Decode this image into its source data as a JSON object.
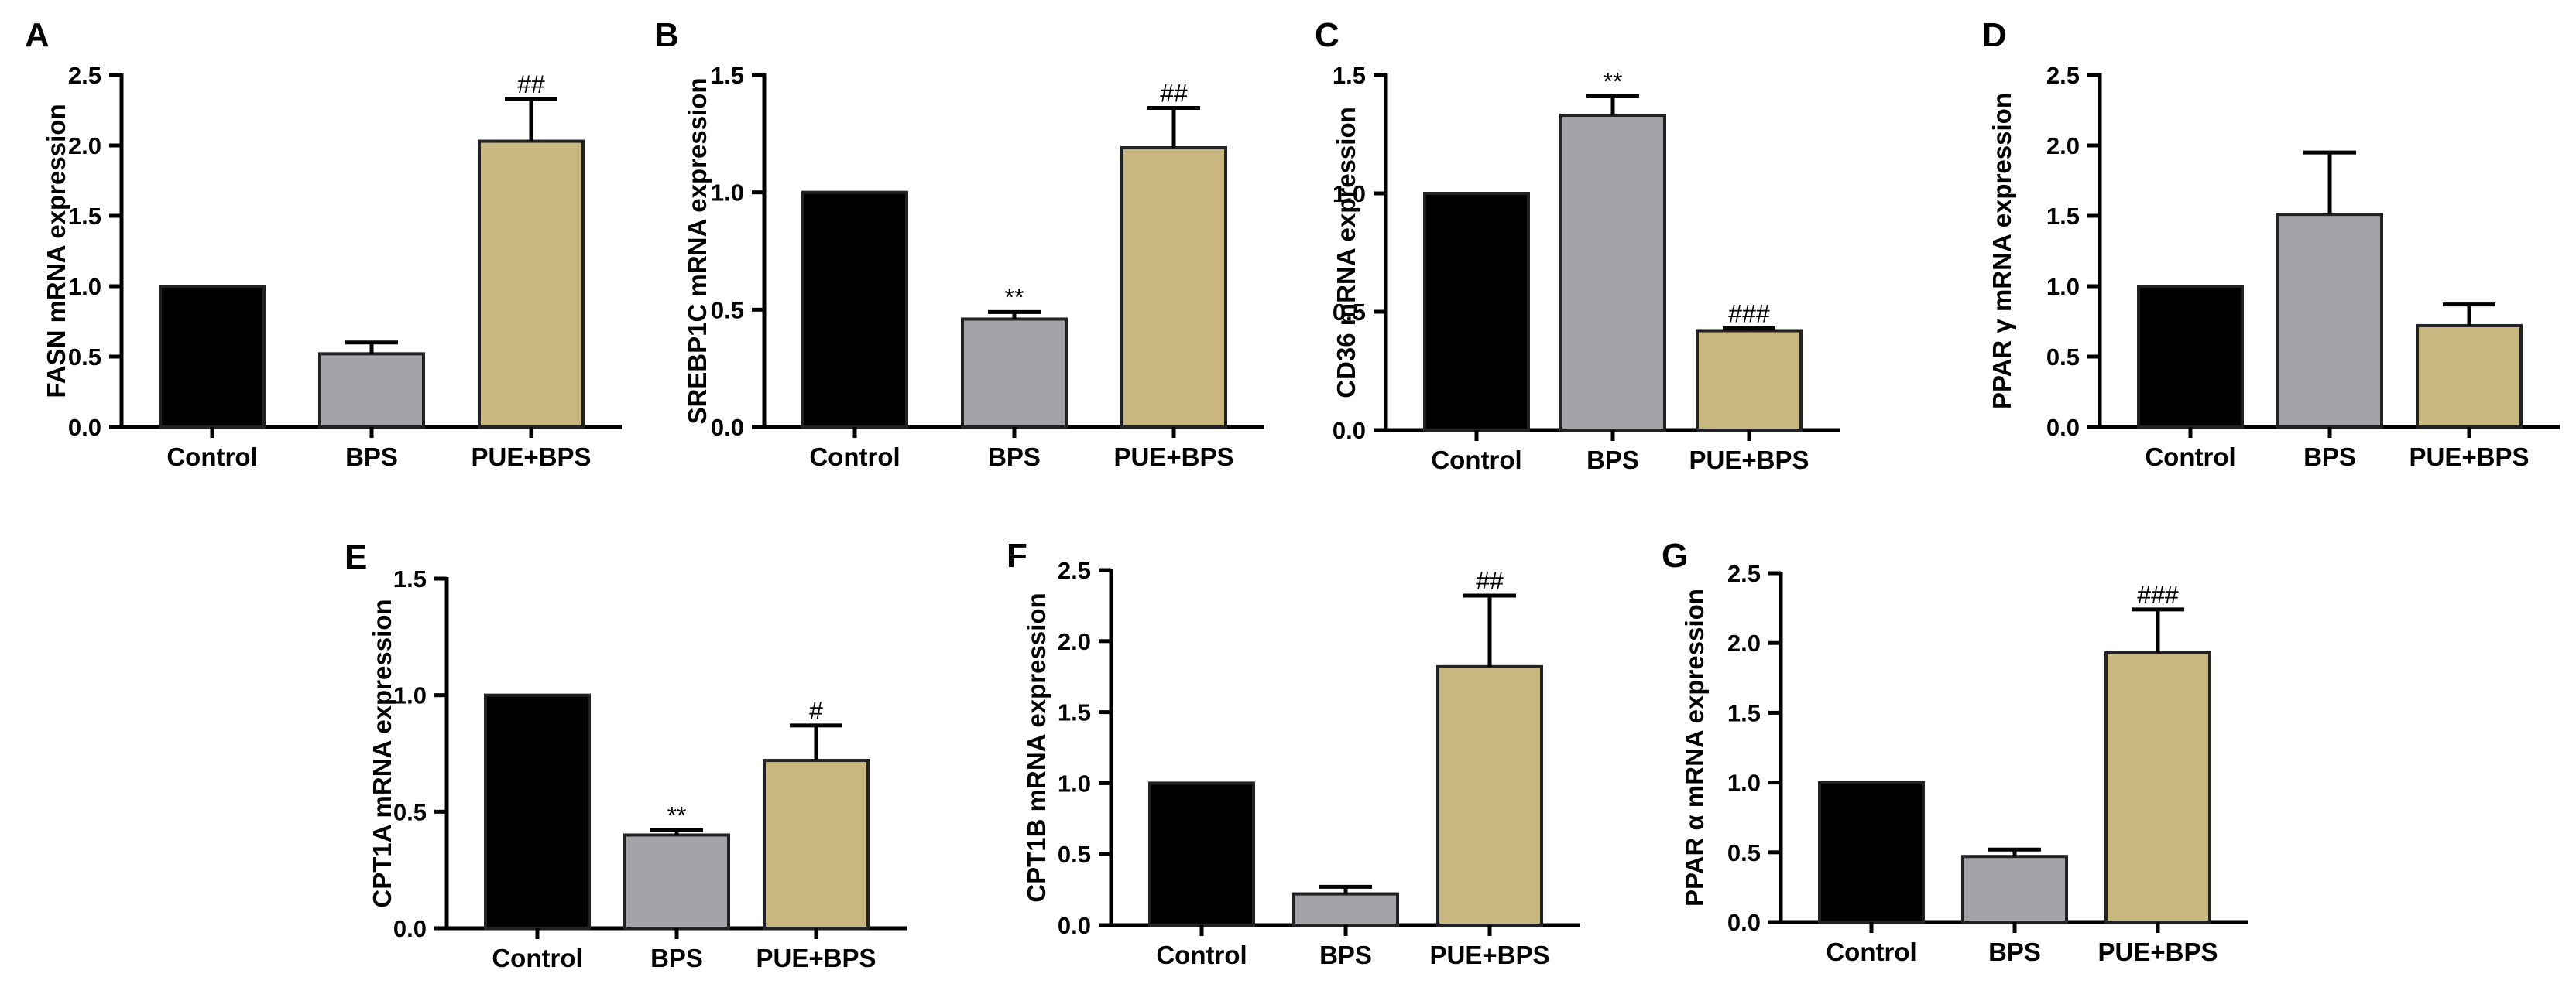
{
  "colors": {
    "control": "#000000",
    "bps": "#a3a3a8",
    "pue": "#c8b77e"
  },
  "chart_data": [
    {
      "type": "bar",
      "panel": "A",
      "ylabel": "FASN mRNA expression",
      "categories": [
        "Control",
        "BPS",
        "PUE+BPS"
      ],
      "values": [
        1.0,
        0.52,
        2.03
      ],
      "errors": [
        0,
        0.08,
        0.3
      ],
      "annotations": [
        "",
        "",
        "##"
      ],
      "ylim": [
        0,
        2.5
      ],
      "yticks": [
        "0.0",
        "0.5",
        "1.0",
        "1.5",
        "2.0",
        "2.5"
      ]
    },
    {
      "type": "bar",
      "panel": "B",
      "ylabel": "SREBP1C mRNA expression",
      "categories": [
        "Control",
        "BPS",
        "PUE+BPS"
      ],
      "values": [
        1.0,
        0.46,
        1.19
      ],
      "errors": [
        0,
        0.03,
        0.17
      ],
      "annotations": [
        "",
        "**",
        "##"
      ],
      "ylim": [
        0,
        1.5
      ],
      "yticks": [
        "0.0",
        "0.5",
        "1.0",
        "1.5"
      ]
    },
    {
      "type": "bar",
      "panel": "C",
      "ylabel": "CD36 mRNA expression",
      "categories": [
        "Control",
        "BPS",
        "PUE+BPS"
      ],
      "values": [
        1.0,
        1.33,
        0.42
      ],
      "errors": [
        0,
        0.08,
        0.01
      ],
      "annotations": [
        "",
        "**",
        "###"
      ],
      "ylim": [
        0,
        1.5
      ],
      "yticks": [
        "0.0",
        "0.5",
        "1.0",
        "1.5"
      ]
    },
    {
      "type": "bar",
      "panel": "D",
      "ylabel": "PPAR γ mRNA expression",
      "categories": [
        "Control",
        "BPS",
        "PUE+BPS"
      ],
      "values": [
        1.0,
        1.51,
        0.72
      ],
      "errors": [
        0,
        0.44,
        0.15
      ],
      "annotations": [
        "",
        "",
        ""
      ],
      "ylim": [
        0,
        2.5
      ],
      "yticks": [
        "0.0",
        "0.5",
        "1.0",
        "1.5",
        "2.0",
        "2.5"
      ]
    },
    {
      "type": "bar",
      "panel": "E",
      "ylabel": "CPT1A mRNA expression",
      "categories": [
        "Control",
        "BPS",
        "PUE+BPS"
      ],
      "values": [
        1.0,
        0.4,
        0.72
      ],
      "errors": [
        0,
        0.02,
        0.15
      ],
      "annotations": [
        "",
        "**",
        "#"
      ],
      "ylim": [
        0,
        1.5
      ],
      "yticks": [
        "0.0",
        "0.5",
        "1.0",
        "1.5"
      ]
    },
    {
      "type": "bar",
      "panel": "F",
      "ylabel": "CPT1B mRNA expression",
      "categories": [
        "Control",
        "BPS",
        "PUE+BPS"
      ],
      "values": [
        1.0,
        0.22,
        1.82
      ],
      "errors": [
        0,
        0.05,
        0.5
      ],
      "annotations": [
        "",
        "",
        "##"
      ],
      "ylim": [
        0,
        2.5
      ],
      "yticks": [
        "0.0",
        "0.5",
        "1.0",
        "1.5",
        "2.0",
        "2.5"
      ]
    },
    {
      "type": "bar",
      "panel": "G",
      "ylabel": "PPAR α mRNA expression",
      "categories": [
        "Control",
        "BPS",
        "PUE+BPS"
      ],
      "values": [
        1.0,
        0.47,
        1.93
      ],
      "errors": [
        0,
        0.05,
        0.31
      ],
      "annotations": [
        "",
        "",
        "###"
      ],
      "ylim": [
        0,
        2.5
      ],
      "yticks": [
        "0.0",
        "0.5",
        "1.0",
        "1.5",
        "2.0",
        "2.5"
      ]
    }
  ]
}
